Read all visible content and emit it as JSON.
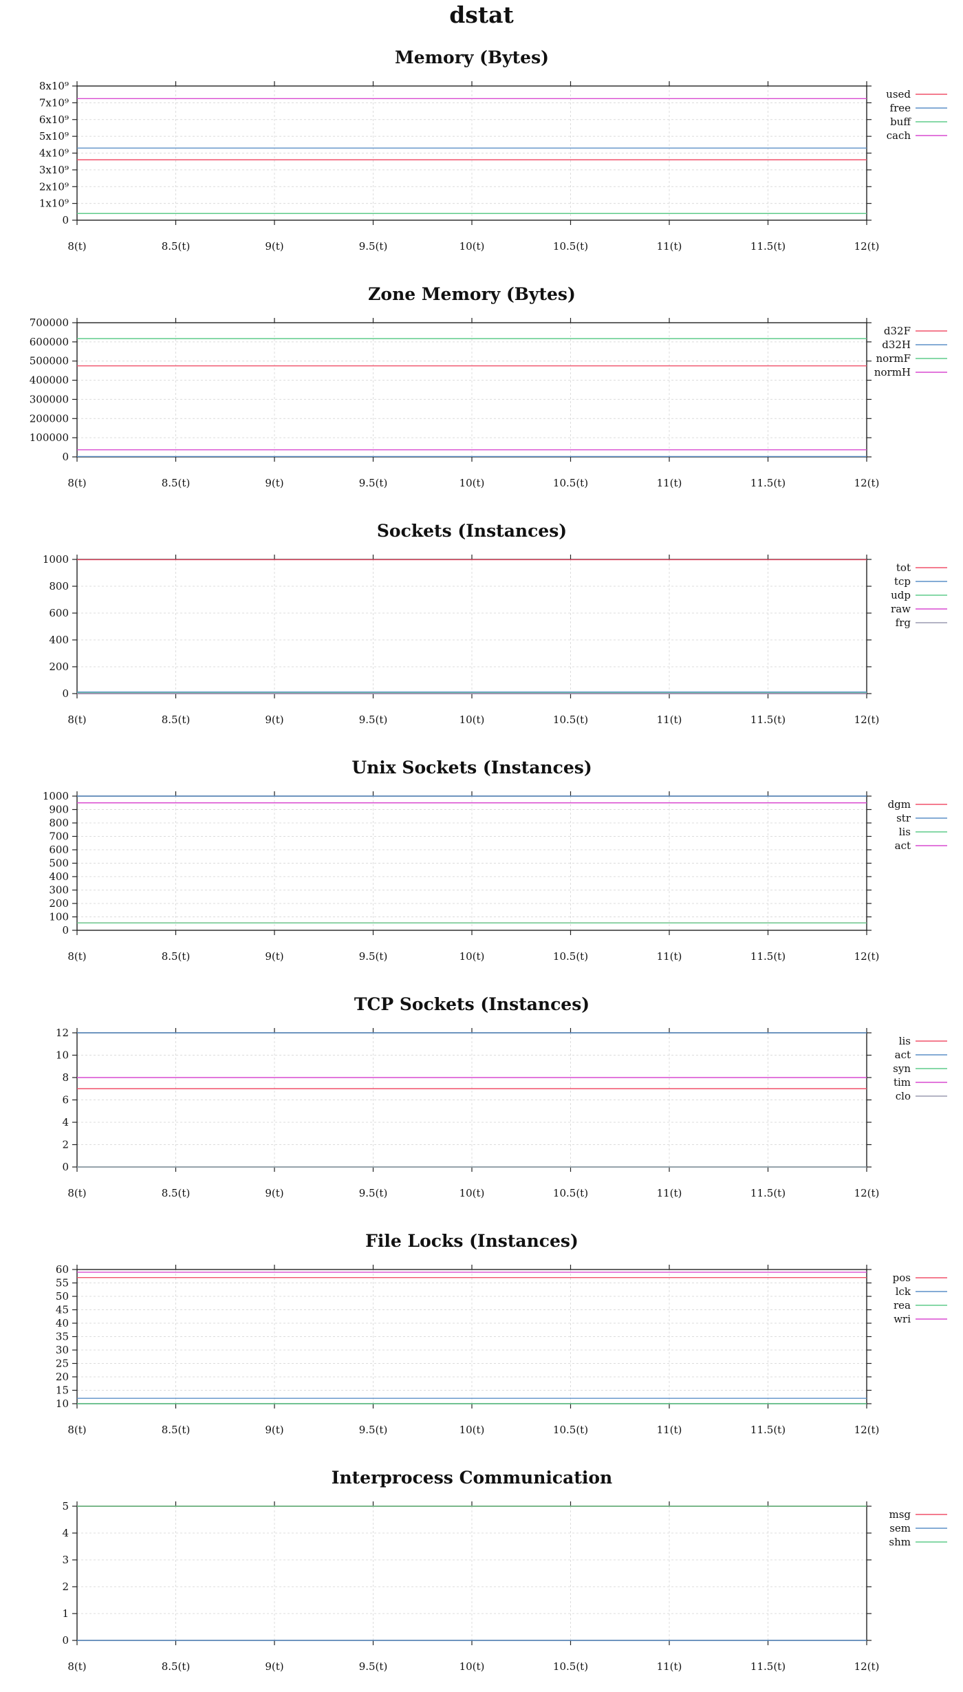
{
  "page": {
    "title": "dstat"
  },
  "colors": {
    "red": "#f0506a",
    "blue": "#5b8fc7",
    "green": "#5ecb8a",
    "magenta": "#d94ad0",
    "gray": "#9a9ab0",
    "grid": "#dcdcdc",
    "axis": "#222222"
  },
  "chart_data": [
    {
      "type": "line",
      "title": "Memory (Bytes)",
      "xlim": [
        8,
        12
      ],
      "xticks": [
        8,
        8.5,
        9,
        9.5,
        10,
        10.5,
        11,
        11.5,
        12
      ],
      "xtick_labels": [
        "8(t)",
        "8.5(t)",
        "9(t)",
        "9.5(t)",
        "10(t)",
        "10.5(t)",
        "11(t)",
        "11.5(t)",
        "12(t)"
      ],
      "ylim": [
        0,
        8000000000
      ],
      "yticks": [
        0,
        1000000000,
        2000000000,
        3000000000,
        4000000000,
        5000000000,
        6000000000,
        7000000000,
        8000000000
      ],
      "ytick_labels": [
        "0",
        "1x10⁹",
        "2x10⁹",
        "3x10⁹",
        "4x10⁹",
        "5x10⁹",
        "6x10⁹",
        "7x10⁹",
        "8x10⁹"
      ],
      "grid": true,
      "legend": "right",
      "series": [
        {
          "name": "used",
          "color": "#f0506a",
          "x": [
            8,
            12
          ],
          "y": [
            3600000000,
            3600000000
          ]
        },
        {
          "name": "free",
          "color": "#5b8fc7",
          "x": [
            8,
            12
          ],
          "y": [
            4300000000,
            4300000000
          ]
        },
        {
          "name": "buff",
          "color": "#5ecb8a",
          "x": [
            8,
            12
          ],
          "y": [
            400000000,
            400000000
          ]
        },
        {
          "name": "cach",
          "color": "#d94ad0",
          "x": [
            8,
            12
          ],
          "y": [
            7250000000,
            7250000000
          ]
        }
      ]
    },
    {
      "type": "line",
      "title": "Zone Memory (Bytes)",
      "xlim": [
        8,
        12
      ],
      "xticks": [
        8,
        8.5,
        9,
        9.5,
        10,
        10.5,
        11,
        11.5,
        12
      ],
      "xtick_labels": [
        "8(t)",
        "8.5(t)",
        "9(t)",
        "9.5(t)",
        "10(t)",
        "10.5(t)",
        "11(t)",
        "11.5(t)",
        "12(t)"
      ],
      "ylim": [
        0,
        700000
      ],
      "yticks": [
        0,
        100000,
        200000,
        300000,
        400000,
        500000,
        600000,
        700000
      ],
      "ytick_labels": [
        "0",
        "100000",
        "200000",
        "300000",
        "400000",
        "500000",
        "600000",
        "700000"
      ],
      "grid": true,
      "legend": "right",
      "series": [
        {
          "name": "d32F",
          "color": "#f0506a",
          "x": [
            8,
            12
          ],
          "y": [
            475000,
            475000
          ]
        },
        {
          "name": "d32H",
          "color": "#5b8fc7",
          "x": [
            8,
            12
          ],
          "y": [
            2000,
            2000
          ]
        },
        {
          "name": "normF",
          "color": "#5ecb8a",
          "x": [
            8,
            12
          ],
          "y": [
            617000,
            617000
          ]
        },
        {
          "name": "normH",
          "color": "#d94ad0",
          "x": [
            8,
            12
          ],
          "y": [
            37000,
            37000
          ]
        }
      ]
    },
    {
      "type": "line",
      "title": "Sockets (Instances)",
      "xlim": [
        8,
        12
      ],
      "xticks": [
        8,
        8.5,
        9,
        9.5,
        10,
        10.5,
        11,
        11.5,
        12
      ],
      "xtick_labels": [
        "8(t)",
        "8.5(t)",
        "9(t)",
        "9.5(t)",
        "10(t)",
        "10.5(t)",
        "11(t)",
        "11.5(t)",
        "12(t)"
      ],
      "ylim": [
        0,
        1000
      ],
      "yticks": [
        0,
        200,
        400,
        600,
        800,
        1000
      ],
      "ytick_labels": [
        "0",
        "200",
        "400",
        "600",
        "800",
        "1000"
      ],
      "grid": true,
      "legend": "right",
      "series": [
        {
          "name": "tot",
          "color": "#f0506a",
          "x": [
            8,
            12
          ],
          "y": [
            998,
            998
          ]
        },
        {
          "name": "tcp",
          "color": "#5b8fc7",
          "x": [
            8,
            12
          ],
          "y": [
            12,
            12
          ]
        },
        {
          "name": "udp",
          "color": "#5ecb8a",
          "x": [
            8,
            12
          ],
          "y": [
            5,
            5
          ]
        },
        {
          "name": "raw",
          "color": "#d94ad0",
          "x": [
            8,
            12
          ],
          "y": [
            0,
            0
          ]
        },
        {
          "name": "frg",
          "color": "#9a9ab0",
          "x": [
            8,
            12
          ],
          "y": [
            0,
            0
          ]
        }
      ]
    },
    {
      "type": "line",
      "title": "Unix Sockets (Instances)",
      "xlim": [
        8,
        12
      ],
      "xticks": [
        8,
        8.5,
        9,
        9.5,
        10,
        10.5,
        11,
        11.5,
        12
      ],
      "xtick_labels": [
        "8(t)",
        "8.5(t)",
        "9(t)",
        "9.5(t)",
        "10(t)",
        "10.5(t)",
        "11(t)",
        "11.5(t)",
        "12(t)"
      ],
      "ylim": [
        0,
        1000
      ],
      "yticks": [
        0,
        100,
        200,
        300,
        400,
        500,
        600,
        700,
        800,
        900,
        1000
      ],
      "ytick_labels": [
        "0",
        "100",
        "200",
        "300",
        "400",
        "500",
        "600",
        "700",
        "800",
        "900",
        "1000"
      ],
      "grid": true,
      "legend": "right",
      "series": [
        {
          "name": "dgm",
          "color": "#f0506a",
          "x": [
            8,
            12
          ],
          "y": [
            55,
            55
          ]
        },
        {
          "name": "str",
          "color": "#5b8fc7",
          "x": [
            8,
            12
          ],
          "y": [
            1000,
            1000
          ]
        },
        {
          "name": "lis",
          "color": "#5ecb8a",
          "x": [
            8,
            12
          ],
          "y": [
            55,
            55
          ]
        },
        {
          "name": "act",
          "color": "#d94ad0",
          "x": [
            8,
            12
          ],
          "y": [
            950,
            950
          ]
        }
      ]
    },
    {
      "type": "line",
      "title": "TCP Sockets (Instances)",
      "xlim": [
        8,
        12
      ],
      "xticks": [
        8,
        8.5,
        9,
        9.5,
        10,
        10.5,
        11,
        11.5,
        12
      ],
      "xtick_labels": [
        "8(t)",
        "8.5(t)",
        "9(t)",
        "9.5(t)",
        "10(t)",
        "10.5(t)",
        "11(t)",
        "11.5(t)",
        "12(t)"
      ],
      "ylim": [
        0,
        12
      ],
      "yticks": [
        0,
        2,
        4,
        6,
        8,
        10,
        12
      ],
      "ytick_labels": [
        "0",
        "2",
        "4",
        "6",
        "8",
        "10",
        "12"
      ],
      "grid": true,
      "legend": "right",
      "series": [
        {
          "name": "lis",
          "color": "#f0506a",
          "x": [
            8,
            12
          ],
          "y": [
            7,
            7
          ]
        },
        {
          "name": "act",
          "color": "#5b8fc7",
          "x": [
            8,
            12
          ],
          "y": [
            12,
            12
          ]
        },
        {
          "name": "syn",
          "color": "#5ecb8a",
          "x": [
            8,
            12
          ],
          "y": [
            0,
            0
          ]
        },
        {
          "name": "tim",
          "color": "#d94ad0",
          "x": [
            8,
            12
          ],
          "y": [
            8,
            8
          ]
        },
        {
          "name": "clo",
          "color": "#9a9ab0",
          "x": [
            8,
            12
          ],
          "y": [
            0,
            0
          ]
        }
      ]
    },
    {
      "type": "line",
      "title": "File Locks (Instances)",
      "xlim": [
        8,
        12
      ],
      "xticks": [
        8,
        8.5,
        9,
        9.5,
        10,
        10.5,
        11,
        11.5,
        12
      ],
      "xtick_labels": [
        "8(t)",
        "8.5(t)",
        "9(t)",
        "9.5(t)",
        "10(t)",
        "10.5(t)",
        "11(t)",
        "11.5(t)",
        "12(t)"
      ],
      "ylim": [
        10,
        60
      ],
      "yticks": [
        10,
        15,
        20,
        25,
        30,
        35,
        40,
        45,
        50,
        55,
        60
      ],
      "ytick_labels": [
        "10",
        "15",
        "20",
        "25",
        "30",
        "35",
        "40",
        "45",
        "50",
        "55",
        "60"
      ],
      "grid": true,
      "legend": "right",
      "series": [
        {
          "name": "pos",
          "color": "#f0506a",
          "x": [
            8,
            12
          ],
          "y": [
            57,
            57
          ]
        },
        {
          "name": "lck",
          "color": "#5b8fc7",
          "x": [
            8,
            12
          ],
          "y": [
            12,
            12
          ]
        },
        {
          "name": "rea",
          "color": "#5ecb8a",
          "x": [
            8,
            12
          ],
          "y": [
            10,
            10
          ]
        },
        {
          "name": "wri",
          "color": "#d94ad0",
          "x": [
            8,
            12
          ],
          "y": [
            59,
            59
          ]
        }
      ]
    },
    {
      "type": "line",
      "title": "Interprocess Communication",
      "xlim": [
        8,
        12
      ],
      "xticks": [
        8,
        8.5,
        9,
        9.5,
        10,
        10.5,
        11,
        11.5,
        12
      ],
      "xtick_labels": [
        "8(t)",
        "8.5(t)",
        "9(t)",
        "9.5(t)",
        "10(t)",
        "10.5(t)",
        "11(t)",
        "11.5(t)",
        "12(t)"
      ],
      "ylim": [
        0,
        5
      ],
      "yticks": [
        0,
        1,
        2,
        3,
        4,
        5
      ],
      "ytick_labels": [
        "0",
        "1",
        "2",
        "3",
        "4",
        "5"
      ],
      "grid": true,
      "legend": "right",
      "series": [
        {
          "name": "msg",
          "color": "#f0506a",
          "x": [
            8,
            12
          ],
          "y": [
            5,
            5
          ]
        },
        {
          "name": "sem",
          "color": "#5b8fc7",
          "x": [
            8,
            12
          ],
          "y": [
            0,
            0
          ]
        },
        {
          "name": "shm",
          "color": "#5ecb8a",
          "x": [
            8,
            12
          ],
          "y": [
            5,
            5
          ]
        }
      ]
    }
  ]
}
